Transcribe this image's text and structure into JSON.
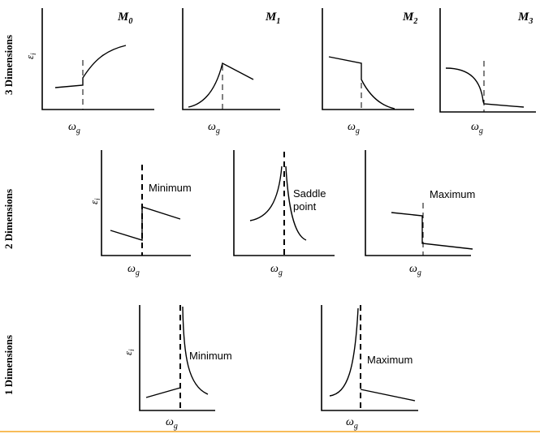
{
  "rows": [
    {
      "label": "3 Dimensions",
      "panels": [
        {
          "title": "M",
          "subscript": "0",
          "xtick": "ω",
          "xtick_sub": "g",
          "ylabel": "ε",
          "ylabel_sub": "i",
          "annotation": []
        },
        {
          "title": "M",
          "subscript": "1",
          "xtick": "ω",
          "xtick_sub": "g",
          "annotation": []
        },
        {
          "title": "M",
          "subscript": "2",
          "xtick": "ω",
          "xtick_sub": "g",
          "annotation": []
        },
        {
          "title": "M",
          "subscript": "3",
          "xtick": "ω",
          "xtick_sub": "g",
          "annotation": []
        }
      ]
    },
    {
      "label": "2 Dimensions",
      "panels": [
        {
          "xtick": "ω",
          "xtick_sub": "g",
          "ylabel": "ε",
          "ylabel_sub": "i",
          "annotation": [
            "Minimum"
          ]
        },
        {
          "xtick": "ω",
          "xtick_sub": "g",
          "annotation": [
            "Saddle",
            "point"
          ]
        },
        {
          "xtick": "ω",
          "xtick_sub": "g",
          "annotation": [
            "Maximum"
          ]
        }
      ]
    },
    {
      "label": "1 Dimensions",
      "panels": [
        {
          "xtick": "ω",
          "xtick_sub": "g",
          "ylabel": "ε",
          "ylabel_sub": "i",
          "annotation": [
            "Minimum"
          ]
        },
        {
          "xtick": "ω",
          "xtick_sub": "g",
          "annotation": [
            "Maximum"
          ]
        }
      ]
    }
  ],
  "colors": {
    "line": "#000000",
    "bottom_rule": "#f5a623"
  }
}
